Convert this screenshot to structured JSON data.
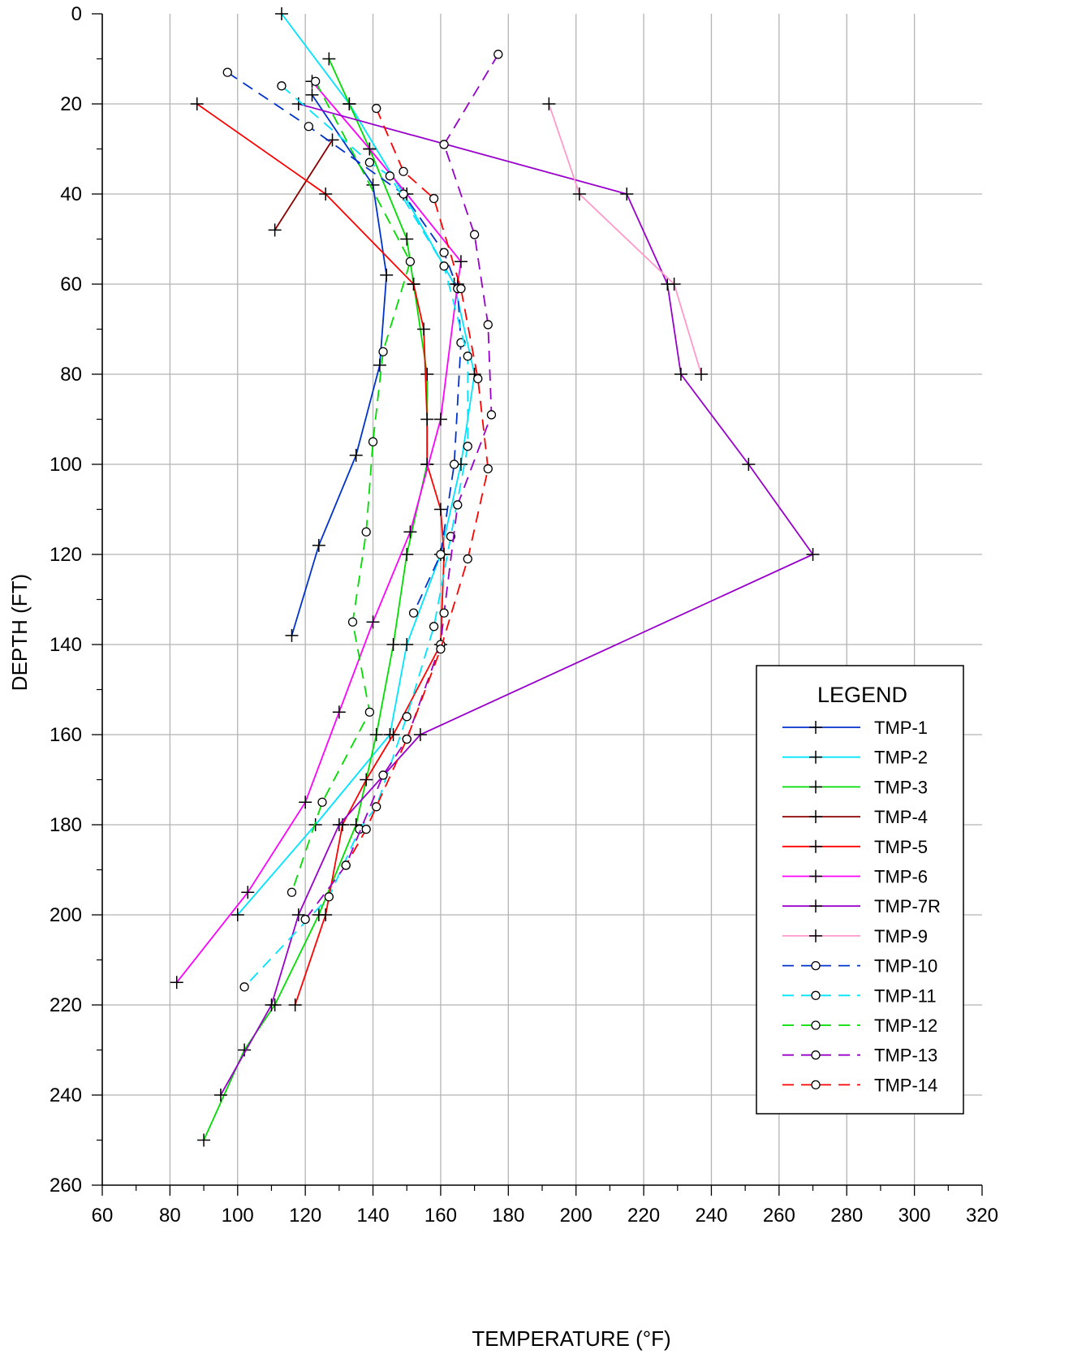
{
  "chart_data": {
    "type": "line",
    "xlabel": "TEMPERATURE (°F)",
    "ylabel": "DEPTH (FT)",
    "xlim": [
      60,
      320
    ],
    "ylim": [
      0,
      260
    ],
    "y_inverted": true,
    "x_ticks": [
      60,
      80,
      100,
      120,
      140,
      160,
      180,
      200,
      220,
      240,
      260,
      280,
      300,
      320
    ],
    "y_ticks": [
      0,
      20,
      40,
      60,
      80,
      100,
      120,
      140,
      160,
      180,
      200,
      220,
      240,
      260
    ],
    "grid": true,
    "legend": {
      "title": "LEGEND",
      "position": "bottom-right"
    },
    "series": [
      {
        "name": "TMP-1",
        "color": "#0033cc",
        "dash": "solid",
        "marker": "plus",
        "points": [
          [
            122,
            18
          ],
          [
            140,
            38
          ],
          [
            144,
            58
          ],
          [
            142,
            78
          ],
          [
            135,
            98
          ],
          [
            124,
            118
          ],
          [
            116,
            138
          ]
        ]
      },
      {
        "name": "TMP-2",
        "color": "#00e5ff",
        "dash": "solid",
        "marker": "plus",
        "points": [
          [
            113,
            0
          ],
          [
            133,
            20
          ],
          [
            149,
            40
          ],
          [
            164,
            60
          ],
          [
            170,
            80
          ],
          [
            166,
            100
          ],
          [
            160,
            120
          ],
          [
            150,
            140
          ],
          [
            145,
            160
          ],
          [
            123,
            180
          ],
          [
            100,
            200
          ]
        ]
      },
      {
        "name": "TMP-3",
        "color": "#00dd00",
        "dash": "solid",
        "marker": "plus",
        "points": [
          [
            127,
            10
          ],
          [
            133,
            20
          ],
          [
            139,
            30
          ],
          [
            150,
            50
          ],
          [
            152,
            60
          ],
          [
            156,
            80
          ],
          [
            156,
            100
          ],
          [
            150,
            120
          ],
          [
            146,
            140
          ],
          [
            141,
            160
          ],
          [
            135,
            180
          ],
          [
            124,
            200
          ],
          [
            111,
            220
          ],
          [
            102,
            230
          ],
          [
            90,
            250
          ]
        ]
      },
      {
        "name": "TMP-4",
        "color": "#8b0000",
        "dash": "solid",
        "marker": "plus",
        "points": [
          [
            128,
            28
          ],
          [
            111,
            48
          ]
        ]
      },
      {
        "name": "TMP-5",
        "color": "#ff0000",
        "dash": "solid",
        "marker": "plus",
        "points": [
          [
            88,
            20
          ],
          [
            126,
            40
          ],
          [
            152,
            60
          ],
          [
            155,
            70
          ],
          [
            156,
            90
          ],
          [
            156,
            100
          ],
          [
            160,
            110
          ],
          [
            161,
            120
          ],
          [
            160,
            140
          ],
          [
            146,
            160
          ],
          [
            138,
            170
          ],
          [
            131,
            180
          ],
          [
            126,
            200
          ],
          [
            117,
            220
          ]
        ]
      },
      {
        "name": "TMP-6",
        "color": "#ff00ff",
        "dash": "solid",
        "marker": "plus",
        "points": [
          [
            122,
            15
          ],
          [
            139,
            30
          ],
          [
            150,
            40
          ],
          [
            166,
            55
          ],
          [
            165,
            60
          ],
          [
            160,
            90
          ],
          [
            151,
            115
          ],
          [
            140,
            135
          ],
          [
            130,
            155
          ],
          [
            120,
            175
          ],
          [
            103,
            195
          ],
          [
            82,
            215
          ]
        ]
      },
      {
        "name": "TMP-7R",
        "color": "#9900cc",
        "dash": "solid",
        "marker": "plus",
        "points": [
          [
            118,
            20
          ],
          [
            215,
            40
          ],
          [
            227,
            60
          ],
          [
            231,
            80
          ],
          [
            251,
            100
          ],
          [
            270,
            120
          ],
          [
            154,
            160
          ],
          [
            130,
            180
          ],
          [
            118,
            200
          ],
          [
            110,
            220
          ],
          [
            95,
            240
          ]
        ]
      },
      {
        "name": "TMP-9",
        "color": "#ff99cc",
        "dash": "solid",
        "marker": "plus",
        "points": [
          [
            192,
            20
          ],
          [
            201,
            40
          ],
          [
            229,
            60
          ],
          [
            237,
            80
          ]
        ]
      },
      {
        "name": "TMP-10",
        "color": "#0033cc",
        "dash": "dashed",
        "marker": "circle",
        "points": [
          [
            97,
            13
          ],
          [
            121,
            25
          ],
          [
            149,
            40
          ],
          [
            161,
            53
          ],
          [
            165,
            61
          ],
          [
            166,
            73
          ],
          [
            164,
            100
          ],
          [
            160,
            120
          ],
          [
            152,
            133
          ]
        ]
      },
      {
        "name": "TMP-11",
        "color": "#00e5ff",
        "dash": "dashed",
        "marker": "circle",
        "points": [
          [
            113,
            16
          ],
          [
            139,
            33
          ],
          [
            145,
            36
          ],
          [
            161,
            56
          ],
          [
            168,
            76
          ],
          [
            168,
            96
          ],
          [
            163,
            116
          ],
          [
            158,
            136
          ],
          [
            150,
            156
          ],
          [
            141,
            176
          ],
          [
            136,
            181
          ],
          [
            127,
            196
          ],
          [
            102,
            216
          ]
        ]
      },
      {
        "name": "TMP-12",
        "color": "#00dd00",
        "dash": "dashed",
        "marker": "circle",
        "points": [
          [
            123,
            15
          ],
          [
            151,
            55
          ],
          [
            143,
            75
          ],
          [
            140,
            95
          ],
          [
            138,
            115
          ],
          [
            134,
            135
          ],
          [
            139,
            155
          ],
          [
            125,
            175
          ],
          [
            116,
            195
          ]
        ]
      },
      {
        "name": "TMP-13",
        "color": "#9900cc",
        "dash": "dashed",
        "marker": "circle",
        "points": [
          [
            177,
            9
          ],
          [
            161,
            29
          ],
          [
            170,
            49
          ],
          [
            174,
            69
          ],
          [
            175,
            89
          ],
          [
            165,
            109
          ],
          [
            161,
            133
          ],
          [
            160,
            140
          ],
          [
            150,
            161
          ],
          [
            143,
            169
          ],
          [
            132,
            189
          ],
          [
            120,
            201
          ]
        ]
      },
      {
        "name": "TMP-14",
        "color": "#ff0000",
        "dash": "dashed",
        "marker": "circle",
        "points": [
          [
            141,
            21
          ],
          [
            149,
            35
          ],
          [
            158,
            41
          ],
          [
            166,
            61
          ],
          [
            171,
            81
          ],
          [
            174,
            101
          ],
          [
            168,
            121
          ],
          [
            160,
            141
          ],
          [
            150,
            161
          ],
          [
            138,
            181
          ],
          [
            132,
            189
          ]
        ]
      }
    ]
  }
}
